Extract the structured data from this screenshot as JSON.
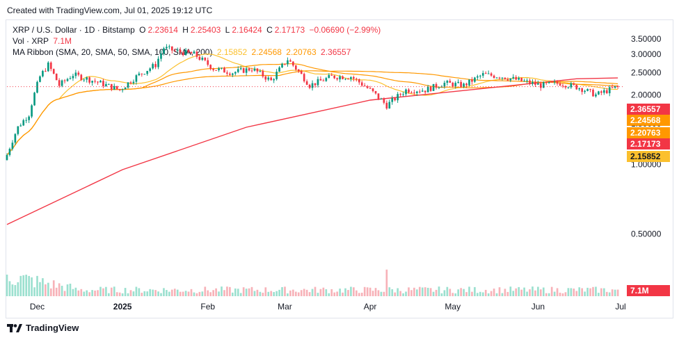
{
  "caption": "Created with TradingView.com, Jul 01, 2025 19:12 UTC",
  "legend": {
    "symbol": "XRP / U.S. Dollar · 1D · Bitstamp",
    "ohlc": {
      "o_label": "O",
      "o": "2.23614",
      "h_label": "H",
      "h": "2.25403",
      "l_label": "L",
      "l": "2.16424",
      "c_label": "C",
      "c": "2.17173",
      "change": "−0.06690 (−2.99%)"
    },
    "vol_label": "Vol · XRP",
    "vol_value": "7.1M",
    "ma_label": "MA Ribbon (SMA, 20, SMA, 50, SMA, 100, SMA, 200)",
    "ma_values": [
      "2.15852",
      "2.24568",
      "2.20763",
      "2.36557"
    ]
  },
  "badges": [
    {
      "text": "2.36557",
      "color": "#f23645"
    },
    {
      "text": "2.24568",
      "color": "#ff9800"
    },
    {
      "text": "2.20763",
      "color": "#ff9800"
    },
    {
      "text": "2.17173",
      "color": "#f23645"
    },
    {
      "text": "2.15852",
      "color": "#fbc02d"
    },
    {
      "text": "7.1M",
      "color": "#f23645"
    }
  ],
  "footer_brand": "TradingView",
  "chart_data": {
    "type": "candlestick",
    "y_scale": "log",
    "y_ticks": [
      "3.50000",
      "3.00000",
      "2.50000",
      "2.00000",
      "1.50000",
      "1.00000",
      "0.50000"
    ],
    "y_tick_values": [
      3.5,
      3.0,
      2.5,
      2.0,
      1.5,
      1.0,
      0.5
    ],
    "x_ticks": [
      "Dec",
      "2025",
      "Feb",
      "Mar",
      "Apr",
      "May",
      "Jun",
      "Jul"
    ],
    "colors": {
      "up": "#089981",
      "down": "#f23645",
      "ma20": "#fbc02d",
      "ma50": "#ff9800",
      "ma100": "#ff9800",
      "ma200": "#f23645"
    },
    "close_series": [
      {
        "date": "2024-11-20",
        "close": 1.1
      },
      {
        "date": "2024-11-24",
        "close": 1.45
      },
      {
        "date": "2024-11-28",
        "close": 1.65
      },
      {
        "date": "2024-12-02",
        "close": 2.4
      },
      {
        "date": "2024-12-05",
        "close": 2.7
      },
      {
        "date": "2024-12-09",
        "close": 2.2
      },
      {
        "date": "2024-12-14",
        "close": 2.45
      },
      {
        "date": "2024-12-19",
        "close": 2.35
      },
      {
        "date": "2024-12-24",
        "close": 2.25
      },
      {
        "date": "2024-12-31",
        "close": 2.1
      },
      {
        "date": "2025-01-06",
        "close": 2.4
      },
      {
        "date": "2025-01-13",
        "close": 2.7
      },
      {
        "date": "2025-01-16",
        "close": 3.2
      },
      {
        "date": "2025-01-20",
        "close": 3.1
      },
      {
        "date": "2025-01-27",
        "close": 3.0
      },
      {
        "date": "2025-02-03",
        "close": 2.6
      },
      {
        "date": "2025-02-10",
        "close": 2.5
      },
      {
        "date": "2025-02-17",
        "close": 2.6
      },
      {
        "date": "2025-02-24",
        "close": 2.3
      },
      {
        "date": "2025-03-02",
        "close": 2.85
      },
      {
        "date": "2025-03-10",
        "close": 2.2
      },
      {
        "date": "2025-03-18",
        "close": 2.4
      },
      {
        "date": "2025-03-25",
        "close": 2.4
      },
      {
        "date": "2025-04-01",
        "close": 2.1
      },
      {
        "date": "2025-04-07",
        "close": 1.8
      },
      {
        "date": "2025-04-14",
        "close": 2.1
      },
      {
        "date": "2025-04-21",
        "close": 2.1
      },
      {
        "date": "2025-04-28",
        "close": 2.25
      },
      {
        "date": "2025-05-05",
        "close": 2.2
      },
      {
        "date": "2025-05-12",
        "close": 2.45
      },
      {
        "date": "2025-05-19",
        "close": 2.4
      },
      {
        "date": "2025-05-26",
        "close": 2.3
      },
      {
        "date": "2025-06-02",
        "close": 2.2
      },
      {
        "date": "2025-06-09",
        "close": 2.25
      },
      {
        "date": "2025-06-16",
        "close": 2.15
      },
      {
        "date": "2025-06-22",
        "close": 2.0
      },
      {
        "date": "2025-06-30",
        "close": 2.17
      }
    ],
    "ma200_series": [
      {
        "date": "2024-11-20",
        "close": 0.55
      },
      {
        "date": "2025-01-01",
        "close": 0.95
      },
      {
        "date": "2025-02-15",
        "close": 1.45
      },
      {
        "date": "2025-04-01",
        "close": 1.9
      },
      {
        "date": "2025-05-15",
        "close": 2.15
      },
      {
        "date": "2025-06-15",
        "close": 2.35
      },
      {
        "date": "2025-06-30",
        "close": 2.37
      }
    ],
    "volume_peak": "high in early December, moderate afterwards"
  }
}
